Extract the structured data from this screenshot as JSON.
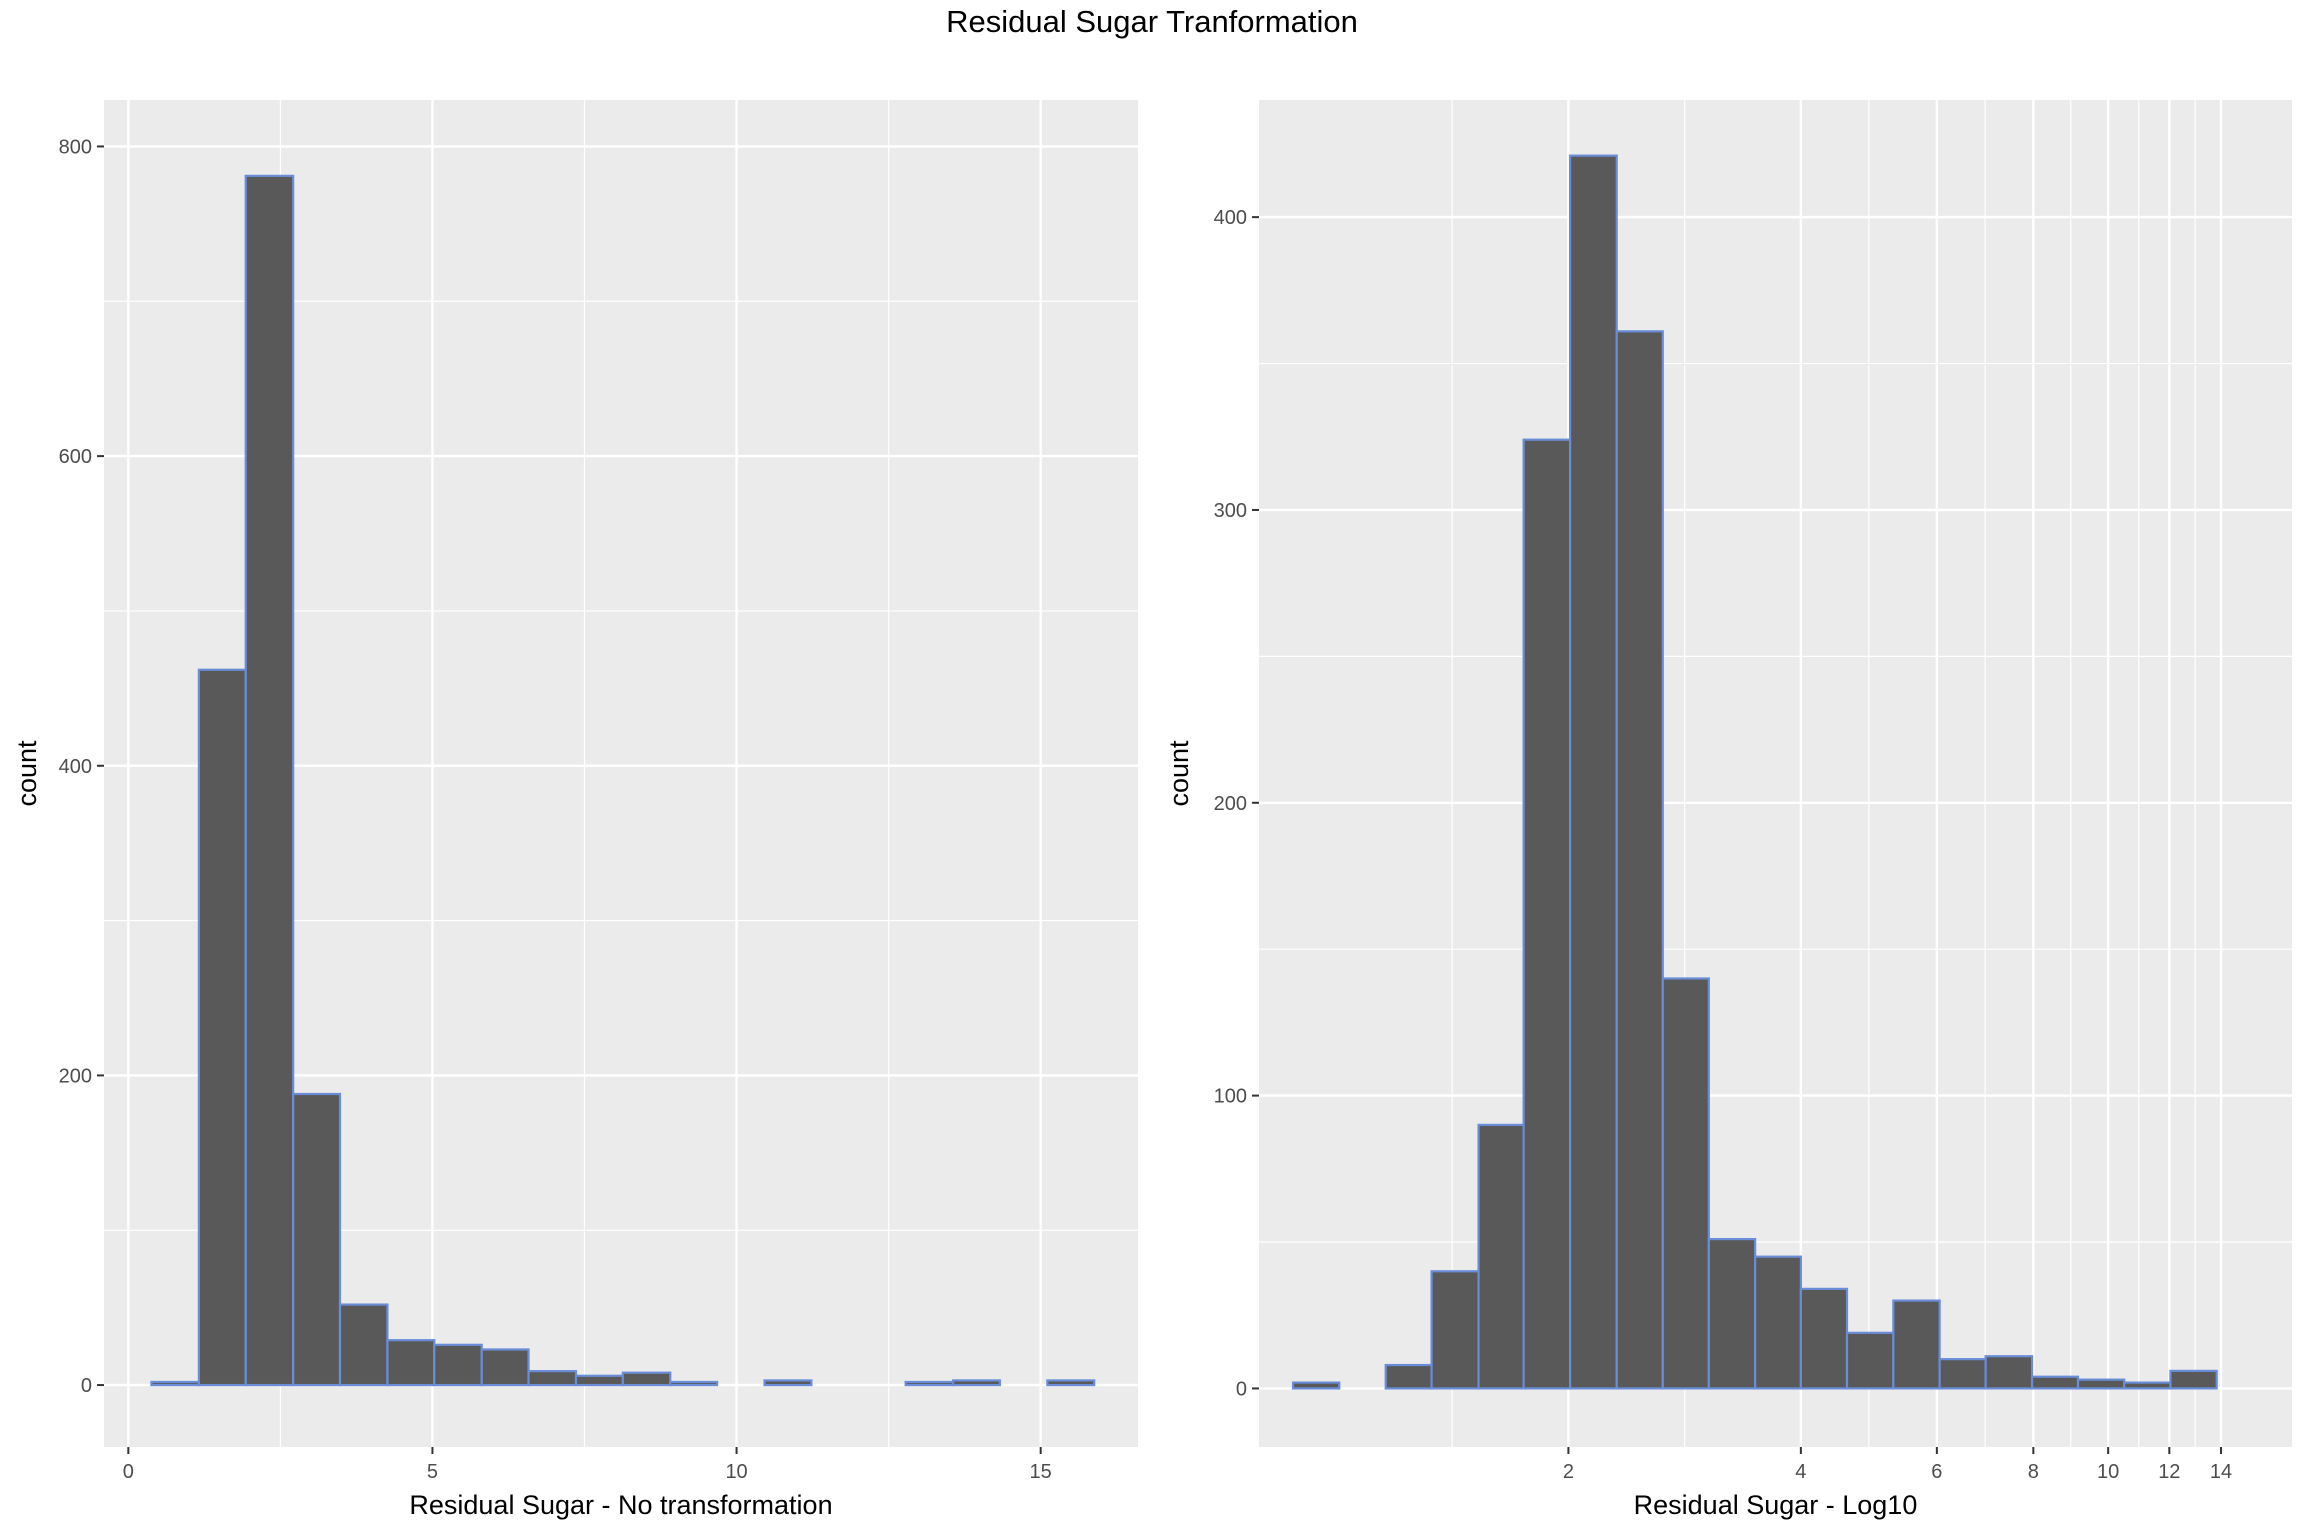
{
  "title": "Residual Sugar Tranformation",
  "colors": {
    "panel_bg": "#EBEBEB",
    "grid": "#FFFFFF",
    "bar_fill": "#595959",
    "bar_outline": "#6A8DD8",
    "tick_text": "#4D4D4D"
  },
  "chart_data": [
    {
      "type": "bar",
      "subtype": "histogram",
      "xlabel": "Residual Sugar - No transformation",
      "ylabel": "count",
      "x_scale": "linear",
      "xlim": [
        -0.4,
        16.6
      ],
      "ylim": [
        -40,
        830
      ],
      "x_ticks": [
        0,
        5,
        10,
        15
      ],
      "x_tick_labels": [
        "0",
        "5",
        "10",
        "15"
      ],
      "y_ticks": [
        0,
        200,
        400,
        600,
        800
      ],
      "y_tick_labels": [
        "0",
        "200",
        "400",
        "600",
        "800"
      ],
      "bins": [
        {
          "x0": 0.38,
          "x1": 1.16,
          "count": 2
        },
        {
          "x0": 1.16,
          "x1": 1.93,
          "count": 462
        },
        {
          "x0": 1.93,
          "x1": 2.71,
          "count": 781
        },
        {
          "x0": 2.71,
          "x1": 3.48,
          "count": 188
        },
        {
          "x0": 3.48,
          "x1": 4.26,
          "count": 52
        },
        {
          "x0": 4.26,
          "x1": 5.03,
          "count": 29
        },
        {
          "x0": 5.03,
          "x1": 5.81,
          "count": 26
        },
        {
          "x0": 5.81,
          "x1": 6.58,
          "count": 23
        },
        {
          "x0": 6.58,
          "x1": 7.36,
          "count": 9
        },
        {
          "x0": 7.36,
          "x1": 8.13,
          "count": 6
        },
        {
          "x0": 8.13,
          "x1": 8.91,
          "count": 8
        },
        {
          "x0": 8.91,
          "x1": 9.68,
          "count": 2
        },
        {
          "x0": 9.68,
          "x1": 10.46,
          "count": 0
        },
        {
          "x0": 10.46,
          "x1": 11.23,
          "count": 3
        },
        {
          "x0": 11.23,
          "x1": 12.01,
          "count": 0
        },
        {
          "x0": 12.01,
          "x1": 12.78,
          "count": 0
        },
        {
          "x0": 12.78,
          "x1": 13.56,
          "count": 2
        },
        {
          "x0": 13.56,
          "x1": 14.33,
          "count": 3
        },
        {
          "x0": 14.33,
          "x1": 15.11,
          "count": 0
        },
        {
          "x0": 15.11,
          "x1": 15.88,
          "count": 3
        }
      ]
    },
    {
      "type": "bar",
      "subtype": "histogram",
      "xlabel": "Residual Sugar - Log10",
      "ylabel": "count",
      "x_scale": "log10",
      "xlim": [
        0.795,
        17.3
      ],
      "ylim": [
        -20,
        440
      ],
      "x_ticks": [
        2,
        4,
        6,
        8,
        10,
        12,
        14
      ],
      "x_tick_labels": [
        "2",
        "4",
        "6",
        "8",
        "10",
        "12",
        "14"
      ],
      "y_ticks": [
        0,
        100,
        200,
        300,
        400
      ],
      "y_tick_labels": [
        "0",
        "100",
        "200",
        "300",
        "400"
      ],
      "bins": [
        {
          "x0": 0.88,
          "x1": 1.01,
          "count": 2
        },
        {
          "x0": 1.01,
          "x1": 1.16,
          "count": 0
        },
        {
          "x0": 1.16,
          "x1": 1.33,
          "count": 8
        },
        {
          "x0": 1.33,
          "x1": 1.53,
          "count": 40
        },
        {
          "x0": 1.53,
          "x1": 1.75,
          "count": 90
        },
        {
          "x0": 1.75,
          "x1": 2.01,
          "count": 324
        },
        {
          "x0": 2.01,
          "x1": 2.31,
          "count": 421
        },
        {
          "x0": 2.31,
          "x1": 2.65,
          "count": 361
        },
        {
          "x0": 2.65,
          "x1": 3.04,
          "count": 140
        },
        {
          "x0": 3.04,
          "x1": 3.49,
          "count": 51
        },
        {
          "x0": 3.49,
          "x1": 4.0,
          "count": 45
        },
        {
          "x0": 4.0,
          "x1": 4.59,
          "count": 34
        },
        {
          "x0": 4.59,
          "x1": 5.27,
          "count": 19
        },
        {
          "x0": 5.27,
          "x1": 6.05,
          "count": 30
        },
        {
          "x0": 6.05,
          "x1": 6.94,
          "count": 10
        },
        {
          "x0": 6.94,
          "x1": 7.97,
          "count": 11
        },
        {
          "x0": 7.97,
          "x1": 9.14,
          "count": 4
        },
        {
          "x0": 9.14,
          "x1": 10.49,
          "count": 3
        },
        {
          "x0": 10.49,
          "x1": 12.04,
          "count": 2
        },
        {
          "x0": 12.04,
          "x1": 13.82,
          "count": 6
        }
      ]
    }
  ]
}
